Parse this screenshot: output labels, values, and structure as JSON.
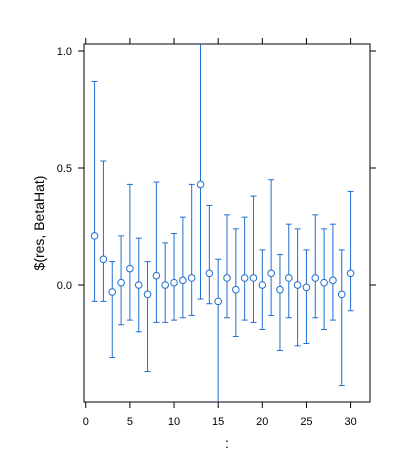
{
  "chart_data": {
    "type": "scatter",
    "title": "",
    "xlabel": ":",
    "ylabel": "$(res, BetaHat)",
    "xlim": [
      -0.2,
      32.2
    ],
    "ylim": [
      -0.5,
      1.03
    ],
    "x_ticks": [
      0,
      5,
      10,
      15,
      20,
      25,
      30
    ],
    "y_ticks": [
      0.0,
      0.5,
      1.0
    ],
    "y_tick_labels": [
      "0.0",
      "0.5",
      "1.0"
    ],
    "grid": false,
    "legend": "none",
    "color": "#1f6fd1",
    "points": [
      {
        "x": 1,
        "y": 0.21,
        "lo": -0.07,
        "hi": 0.87
      },
      {
        "x": 2,
        "y": 0.11,
        "lo": -0.07,
        "hi": 0.53
      },
      {
        "x": 3,
        "y": -0.03,
        "lo": -0.31,
        "hi": 0.1
      },
      {
        "x": 4,
        "y": 0.01,
        "lo": -0.17,
        "hi": 0.21
      },
      {
        "x": 5,
        "y": 0.07,
        "lo": -0.15,
        "hi": 0.43
      },
      {
        "x": 6,
        "y": 0.0,
        "lo": -0.2,
        "hi": 0.2
      },
      {
        "x": 7,
        "y": -0.04,
        "lo": -0.37,
        "hi": 0.1
      },
      {
        "x": 8,
        "y": 0.04,
        "lo": -0.16,
        "hi": 0.44
      },
      {
        "x": 9,
        "y": 0.0,
        "lo": -0.16,
        "hi": 0.18
      },
      {
        "x": 10,
        "y": 0.01,
        "lo": -0.15,
        "hi": 0.22
      },
      {
        "x": 11,
        "y": 0.02,
        "lo": -0.14,
        "hi": 0.29
      },
      {
        "x": 12,
        "y": 0.03,
        "lo": -0.13,
        "hi": 0.43
      },
      {
        "x": 13,
        "y": 0.43,
        "lo": -0.06,
        "hi": 1.03
      },
      {
        "x": 14,
        "y": 0.05,
        "lo": -0.08,
        "hi": 0.34
      },
      {
        "x": 15,
        "y": -0.07,
        "lo": -0.5,
        "hi": 0.11
      },
      {
        "x": 16,
        "y": 0.03,
        "lo": -0.14,
        "hi": 0.3
      },
      {
        "x": 17,
        "y": -0.02,
        "lo": -0.22,
        "hi": 0.24
      },
      {
        "x": 18,
        "y": 0.03,
        "lo": -0.15,
        "hi": 0.29
      },
      {
        "x": 19,
        "y": 0.03,
        "lo": -0.16,
        "hi": 0.38
      },
      {
        "x": 20,
        "y": 0.0,
        "lo": -0.19,
        "hi": 0.15
      },
      {
        "x": 21,
        "y": 0.05,
        "lo": -0.13,
        "hi": 0.45
      },
      {
        "x": 22,
        "y": -0.02,
        "lo": -0.28,
        "hi": 0.13
      },
      {
        "x": 23,
        "y": 0.03,
        "lo": -0.14,
        "hi": 0.26
      },
      {
        "x": 24,
        "y": 0.0,
        "lo": -0.26,
        "hi": 0.24
      },
      {
        "x": 25,
        "y": -0.01,
        "lo": -0.25,
        "hi": 0.15
      },
      {
        "x": 26,
        "y": 0.03,
        "lo": -0.14,
        "hi": 0.3
      },
      {
        "x": 27,
        "y": 0.01,
        "lo": -0.19,
        "hi": 0.24
      },
      {
        "x": 28,
        "y": 0.02,
        "lo": -0.15,
        "hi": 0.26
      },
      {
        "x": 29,
        "y": -0.04,
        "lo": -0.43,
        "hi": 0.15
      },
      {
        "x": 30,
        "y": 0.05,
        "lo": -0.11,
        "hi": 0.4
      }
    ]
  }
}
